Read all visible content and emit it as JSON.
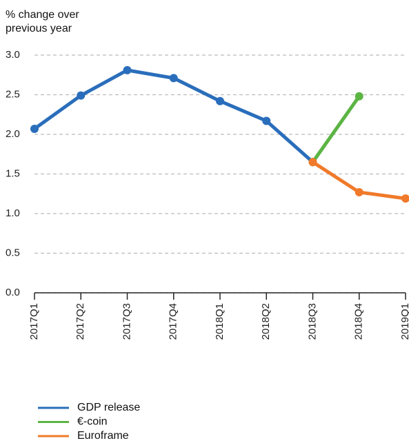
{
  "chart_data": {
    "type": "line",
    "ylabel": "% change over previous year",
    "categories": [
      "2017Q1",
      "2017Q2",
      "2017Q3",
      "2017Q4",
      "2018Q1",
      "2018Q2",
      "2018Q3",
      "2018Q4",
      "2019Q1"
    ],
    "series": [
      {
        "name": "GDP release",
        "color": "#2a6ebb",
        "values": [
          2.07,
          2.49,
          2.81,
          2.71,
          2.42,
          2.17,
          1.65,
          null,
          null
        ]
      },
      {
        "name": "€-coin",
        "color": "#5cb443",
        "values": [
          null,
          null,
          null,
          null,
          null,
          null,
          1.65,
          2.48,
          null
        ]
      },
      {
        "name": "Euroframe",
        "color": "#f07a2a",
        "values": [
          null,
          null,
          null,
          null,
          null,
          null,
          1.65,
          1.27,
          1.19
        ]
      }
    ],
    "ylim": [
      0,
      3
    ],
    "yticks": [
      {
        "value": 0,
        "label": "0.0"
      },
      0.5,
      {
        "value": 1,
        "label": "1.0"
      },
      1.5,
      {
        "value": 2,
        "label": "2.0"
      },
      2.5,
      {
        "value": 3,
        "label": "3.0"
      }
    ],
    "grid": true
  }
}
